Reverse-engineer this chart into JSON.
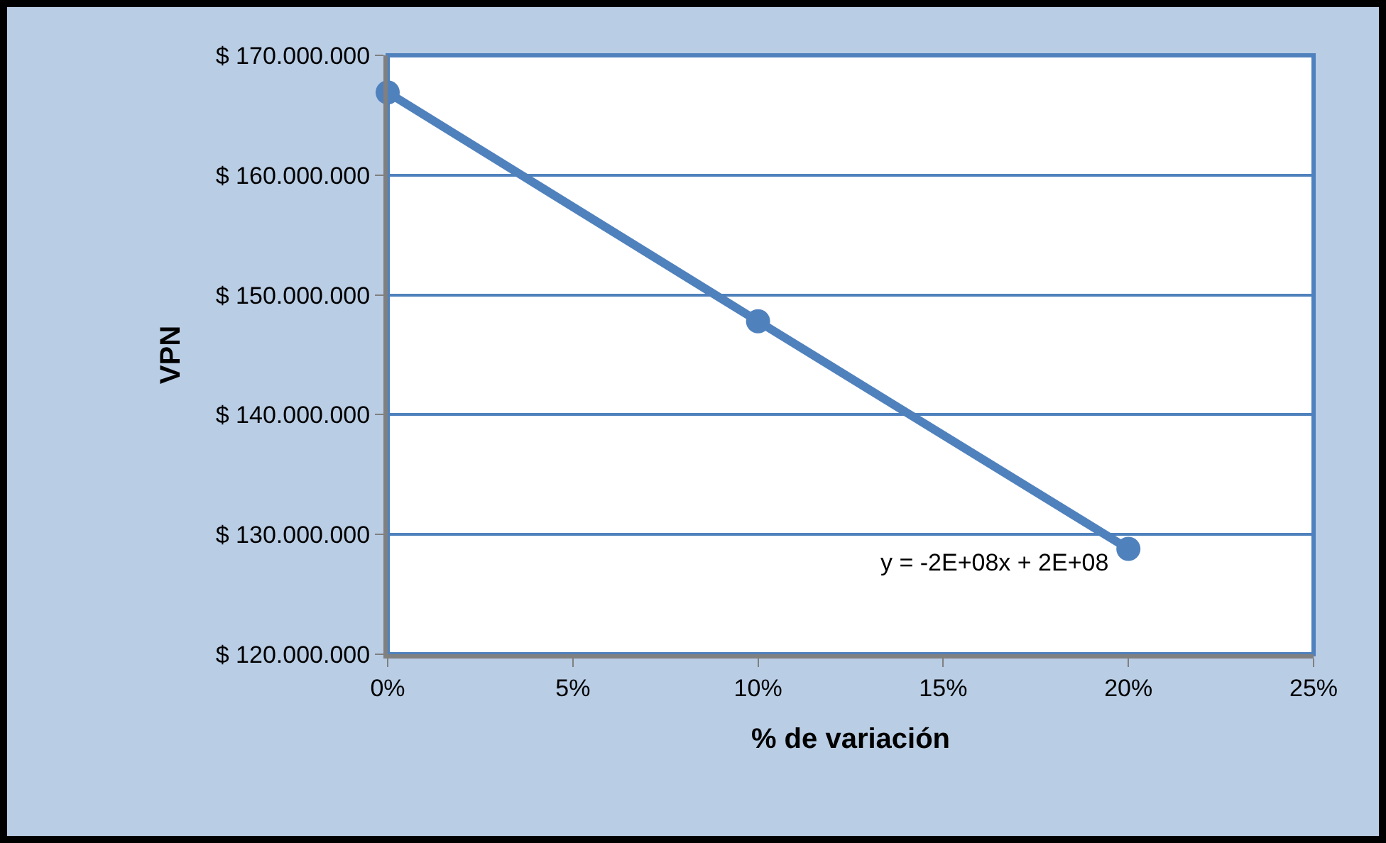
{
  "chart_data": {
    "type": "line",
    "xlabel": "% de variación",
    "ylabel": "VPN",
    "x": [
      0,
      0.1,
      0.2
    ],
    "series": [
      {
        "color": "#4f81bd",
        "values": [
          166900000,
          147800000,
          128800000
        ]
      }
    ],
    "xlim": [
      0,
      0.25
    ],
    "xticks": [
      {
        "value": 0,
        "label": "0%"
      },
      {
        "value": 0.05,
        "label": "5%"
      },
      {
        "value": 0.1,
        "label": "10%"
      },
      {
        "value": 0.15,
        "label": "15%"
      },
      {
        "value": 0.2,
        "label": "20%"
      },
      {
        "value": 0.25,
        "label": "25%"
      }
    ],
    "ylim": [
      120000000,
      170000000
    ],
    "yticks": [
      {
        "value": 120000000,
        "label": "$ 120.000.000"
      },
      {
        "value": 130000000,
        "label": "$ 130.000.000"
      },
      {
        "value": 140000000,
        "label": "$ 140.000.000"
      },
      {
        "value": 150000000,
        "label": "$ 150.000.000"
      },
      {
        "value": 160000000,
        "label": "$ 160.000.000"
      },
      {
        "value": 170000000,
        "label": "$ 170.000.000"
      }
    ],
    "grid": "y",
    "marker": "circle",
    "line_style": "solid",
    "annotations": [
      {
        "text": "y = -2E+08x + 2E+08",
        "x": 0.2,
        "y": 128800000
      }
    ]
  }
}
